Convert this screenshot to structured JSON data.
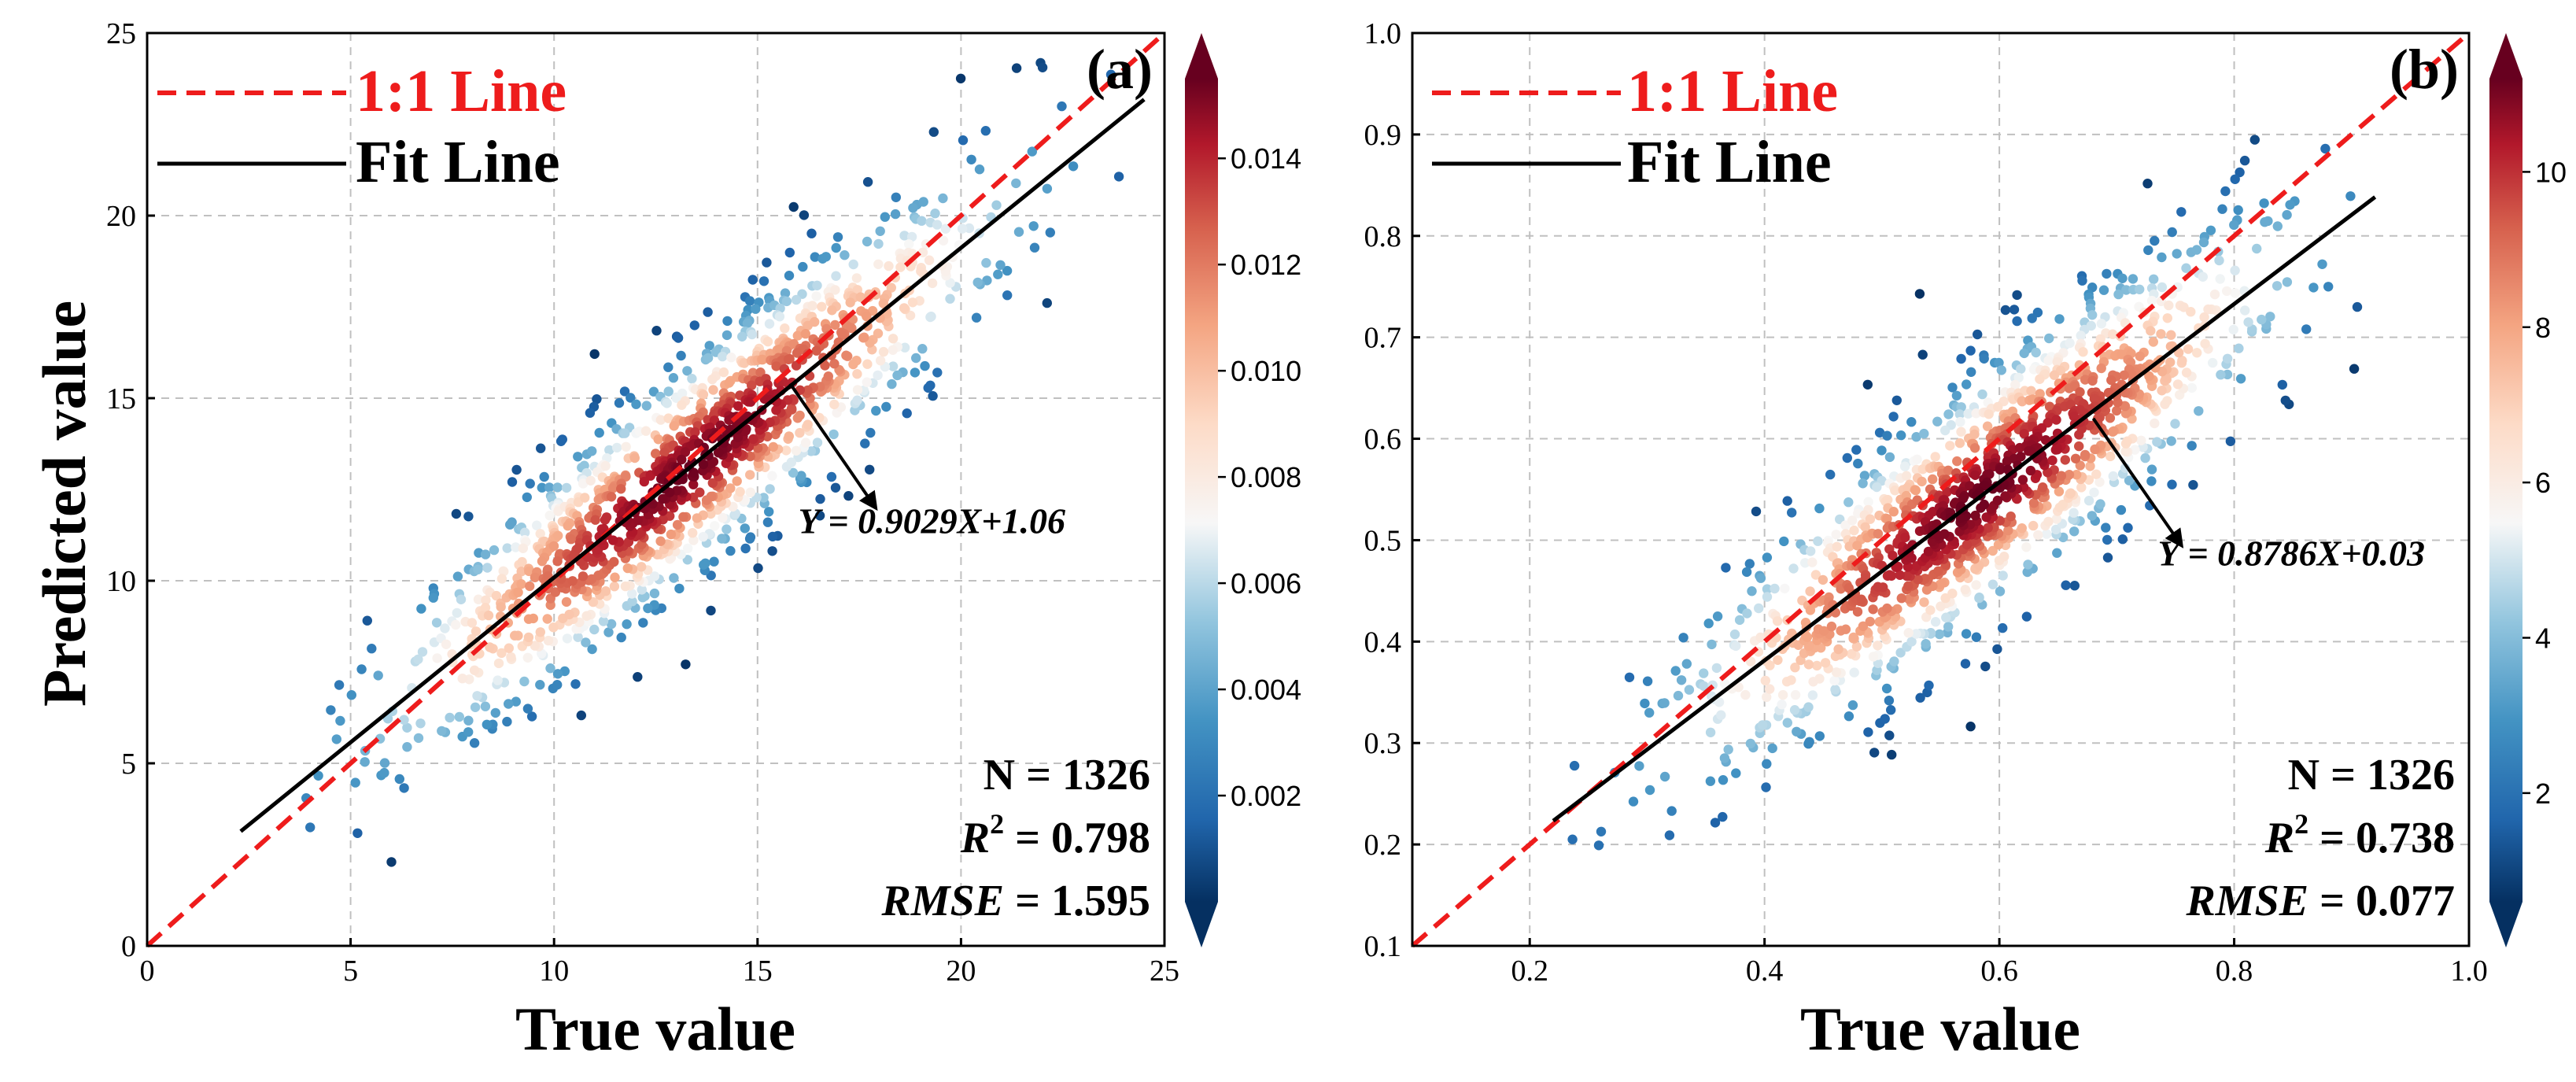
{
  "chart_data": [
    {
      "type": "scatter",
      "panel_label": "(a)",
      "xlabel": "True value",
      "ylabel": "Predicted value",
      "xlim": [
        0,
        25
      ],
      "ylim": [
        0,
        25
      ],
      "xticks": [
        0,
        5,
        10,
        15,
        20,
        25
      ],
      "yticks": [
        0,
        5,
        10,
        15,
        20,
        25
      ],
      "xtick_labels": [
        "0",
        "5",
        "10",
        "15",
        "20",
        "25"
      ],
      "ytick_labels": [
        "0",
        "5",
        "10",
        "15",
        "20",
        "25"
      ],
      "grid": true,
      "legend": [
        {
          "label": "1:1 Line",
          "style": "dashed",
          "color": "#ee1c1c"
        },
        {
          "label": "Fit Line",
          "style": "solid",
          "color": "#000000"
        }
      ],
      "legend_position": "top-left",
      "one_to_one": {
        "x": [
          0,
          25
        ],
        "y": [
          0,
          25
        ]
      },
      "fit_line": {
        "slope": 0.9029,
        "intercept": 1.06,
        "x_range": [
          2.3,
          24.5
        ]
      },
      "equation": "Y = 0.9029X+1.06",
      "equation_arrow_from": [
        15.8,
        15.4
      ],
      "equation_arrow_to": [
        17.9,
        12.0
      ],
      "equation_anchor": [
        16.0,
        11.3
      ],
      "stats": {
        "n": "N = 1326",
        "r2_label": "R",
        "r2_sup": "2",
        "r2_value": " = 0.798",
        "rmse_label": "RMSE",
        "rmse_value": " = 1.595"
      },
      "density": {
        "n_points": 1326,
        "x_mean": 13.4,
        "x_sd": 3.6,
        "slope": 0.9029,
        "intercept": 1.06,
        "resid_sd": 1.6,
        "x_min": 2.3,
        "x_max": 24.5,
        "y_min": 2.2,
        "y_max": 24.2
      },
      "colorbar": {
        "ticks": [
          0.002,
          0.004,
          0.006,
          0.008,
          0.01,
          0.012,
          0.014
        ],
        "tick_labels": [
          "0.002",
          "0.004",
          "0.006",
          "0.008",
          "0.010",
          "0.012",
          "0.014"
        ],
        "range": [
          0.0,
          0.0155
        ],
        "colormap": "RdBu_r"
      }
    },
    {
      "type": "scatter",
      "panel_label": "(b)",
      "xlabel": "True value",
      "ylabel": "",
      "xlim": [
        0.1,
        1.0
      ],
      "ylim": [
        0.1,
        1.0
      ],
      "xticks": [
        0.2,
        0.4,
        0.6,
        0.8,
        1.0
      ],
      "yticks": [
        0.1,
        0.2,
        0.3,
        0.4,
        0.5,
        0.6,
        0.7,
        0.8,
        0.9,
        1.0
      ],
      "xtick_labels": [
        "0.2",
        "0.4",
        "0.6",
        "0.8",
        "1.0"
      ],
      "ytick_labels": [
        "0.1",
        "0.2",
        "0.3",
        "0.4",
        "0.5",
        "0.6",
        "0.7",
        "0.8",
        "0.9",
        "1.0"
      ],
      "grid": true,
      "legend": [
        {
          "label": "1:1 Line",
          "style": "dashed",
          "color": "#ee1c1c"
        },
        {
          "label": "Fit Line",
          "style": "solid",
          "color": "#000000"
        }
      ],
      "legend_position": "top-left",
      "one_to_one": {
        "x": [
          0.1,
          1.0
        ],
        "y": [
          0.1,
          1.0
        ]
      },
      "fit_line": {
        "slope": 0.8786,
        "intercept": 0.03,
        "x_range": [
          0.22,
          0.92
        ]
      },
      "equation": "Y = 0.8786X+0.03",
      "equation_arrow_from": [
        0.68,
        0.62
      ],
      "equation_arrow_to": [
        0.755,
        0.495
      ],
      "equation_anchor": [
        0.735,
        0.475
      ],
      "stats": {
        "n": "N = 1326",
        "r2_label": "R",
        "r2_sup": "2",
        "r2_value": " = 0.738",
        "rmse_label": "RMSE",
        "rmse_value": " = 0.077"
      },
      "density": {
        "n_points": 1326,
        "x_mean": 0.585,
        "x_sd": 0.12,
        "slope": 0.8786,
        "intercept": 0.03,
        "resid_sd": 0.065,
        "x_min": 0.22,
        "x_max": 0.92,
        "y_min": 0.18,
        "y_max": 0.91
      },
      "colorbar": {
        "ticks": [
          2,
          4,
          6,
          8,
          10
        ],
        "tick_labels": [
          "2",
          "4",
          "6",
          "8",
          "10"
        ],
        "range": [
          0.6,
          11.2
        ],
        "colormap": "RdBu_r"
      }
    }
  ]
}
